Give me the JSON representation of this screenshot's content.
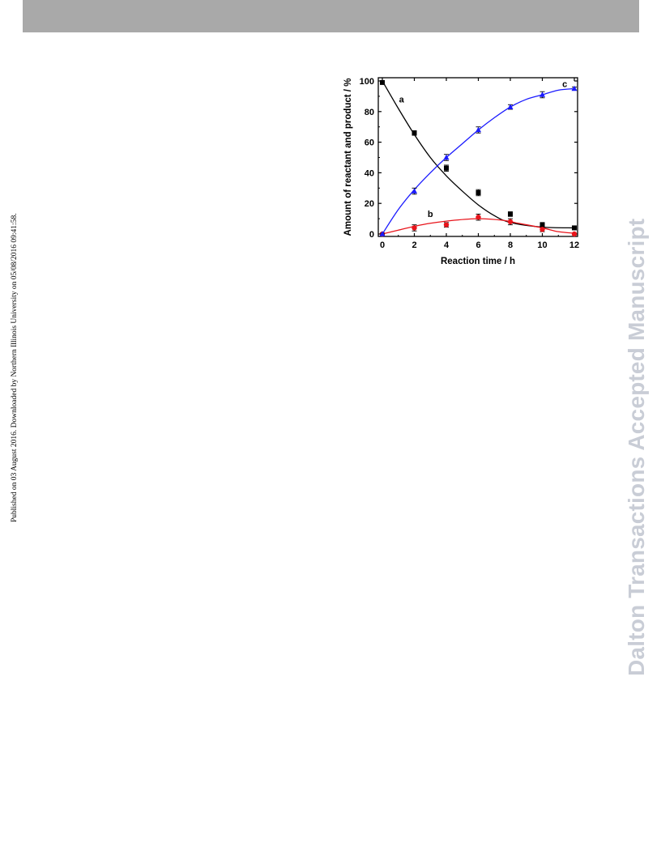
{
  "header": {
    "bar_color": "#a9a9a9"
  },
  "side_note": "Published on 03 August 2016. Downloaded by Northern Illinois University on 05/08/2016 09:41:58.",
  "watermark": "Dalton Transactions Accepted Manuscript",
  "chart_data": {
    "type": "line",
    "xlabel": "Reaction time / h",
    "ylabel": "Amount of reactant and product / %",
    "x": [
      0,
      2,
      4,
      6,
      8,
      10,
      12
    ],
    "xlim": [
      0,
      12
    ],
    "ylim": [
      0,
      100
    ],
    "xticks": [
      0,
      2,
      4,
      6,
      8,
      10,
      12
    ],
    "yticks": [
      0,
      20,
      40,
      60,
      80,
      100
    ],
    "grid": false,
    "series": [
      {
        "name": "a",
        "color": "#000000",
        "marker": "square",
        "values": [
          99,
          66,
          43,
          27,
          13,
          6,
          4
        ],
        "errors": [
          1,
          1.5,
          2,
          2,
          1.5,
          1.5,
          1
        ],
        "fit": [
          100,
          82,
          65,
          50,
          38,
          28,
          19,
          12,
          7.5,
          4.5,
          4
        ]
      },
      {
        "name": "b",
        "color": "#e8141b",
        "marker": "circle",
        "values": [
          0,
          4,
          6,
          11,
          8,
          3,
          0
        ],
        "errors": [
          0.5,
          2,
          1.5,
          2,
          2,
          1.5,
          0.5
        ],
        "fit": [
          0,
          2.5,
          5,
          7,
          9,
          10,
          9,
          7,
          4,
          1.5,
          0.5
        ]
      },
      {
        "name": "c",
        "color": "#1a1aff",
        "marker": "triangle",
        "values": [
          0,
          28,
          50,
          68,
          83,
          91,
          95
        ],
        "errors": [
          0.5,
          2,
          2,
          2,
          1.5,
          2,
          1
        ],
        "fit": [
          0,
          16,
          29,
          40,
          50,
          59,
          68,
          76,
          83,
          88,
          91,
          94,
          95
        ]
      }
    ],
    "fit_x": {
      "a": [
        0,
        1,
        2,
        3,
        4,
        5,
        6,
        7,
        8,
        10,
        12
      ],
      "b": [
        0,
        1,
        2,
        3,
        4.5,
        6,
        7.5,
        8.5,
        10,
        11,
        12
      ],
      "c": [
        0,
        1,
        2,
        3,
        4,
        5,
        6,
        7,
        8,
        9,
        10,
        11,
        12
      ]
    }
  }
}
